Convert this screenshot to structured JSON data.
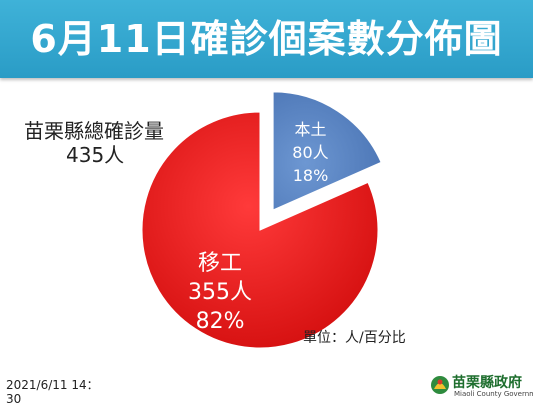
{
  "header": {
    "title": "6月11日確診個案數分佈圖"
  },
  "summary": {
    "label": "苗栗縣總確診量",
    "value": "435人"
  },
  "footer": {
    "unit_note": "單位：人/百分比",
    "datetime": "2021/6/11 14：",
    "datetime_tail": "30"
  },
  "logo": {
    "name": "苗栗縣政府",
    "subtitle": "Miaoli County Government"
  },
  "colors": {
    "banner": "#2ea4cd",
    "local": "#5a85c2",
    "migrant": "#e81c1c"
  },
  "chart_data": {
    "type": "pie",
    "title": "",
    "slices": [
      {
        "name": "本土",
        "value": 80,
        "count_label": "80人",
        "percent_label": "18%",
        "color": "#5a85c2",
        "exploded": true
      },
      {
        "name": "移工",
        "value": 355,
        "count_label": "355人",
        "percent_label": "82%",
        "color": "#e81c1c",
        "exploded": false
      }
    ]
  }
}
